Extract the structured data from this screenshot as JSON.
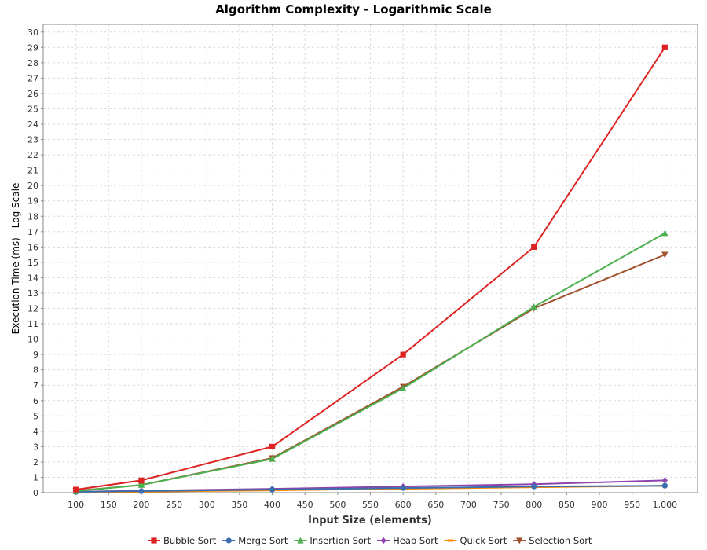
{
  "chart_data": {
    "type": "line",
    "title": "Algorithm Complexity - Logarithmic Scale",
    "xlabel": "Input Size (elements)",
    "ylabel": "Execution Time (ms) - Log Scale",
    "x": [
      100,
      200,
      400,
      600,
      800,
      1000
    ],
    "xlim": [
      50,
      1050
    ],
    "ylim": [
      0,
      30.5
    ],
    "x_ticks": [
      "100",
      "150",
      "200",
      "250",
      "300",
      "350",
      "400",
      "450",
      "500",
      "550",
      "600",
      "650",
      "700",
      "750",
      "800",
      "850",
      "900",
      "950",
      "1,000"
    ],
    "y_ticks": [
      "0",
      "1",
      "2",
      "3",
      "4",
      "5",
      "6",
      "7",
      "8",
      "9",
      "10",
      "11",
      "12",
      "13",
      "14",
      "15",
      "16",
      "17",
      "18",
      "19",
      "20",
      "21",
      "22",
      "23",
      "24",
      "25",
      "26",
      "27",
      "28",
      "29",
      "30"
    ],
    "grid": true,
    "legend_position": "bottom",
    "series": [
      {
        "name": "Bubble Sort",
        "color": "#dd2222",
        "marker": "square",
        "values": [
          0.2,
          0.8,
          3.0,
          9.0,
          16.0,
          29.0
        ]
      },
      {
        "name": "Merge Sort",
        "color": "#3a6ead",
        "marker": "circle",
        "values": [
          0.05,
          0.1,
          0.2,
          0.3,
          0.4,
          0.45
        ]
      },
      {
        "name": "Insertion Sort",
        "color": "#4caf50",
        "marker": "triangle-up",
        "values": [
          0.1,
          0.5,
          2.2,
          6.8,
          12.1,
          16.9
        ]
      },
      {
        "name": "Heap Sort",
        "color": "#8e44ad",
        "marker": "diamond",
        "values": [
          0.06,
          0.12,
          0.25,
          0.4,
          0.55,
          0.8
        ]
      },
      {
        "name": "Quick Sort",
        "color": "#ff8800",
        "marker": "none",
        "values": [
          0.03,
          0.06,
          0.15,
          0.25,
          0.35,
          0.45
        ]
      },
      {
        "name": "Selection Sort",
        "color": "#a0522d",
        "marker": "triangle-down",
        "values": [
          0.12,
          0.5,
          2.25,
          6.9,
          12.0,
          15.5
        ]
      }
    ]
  }
}
